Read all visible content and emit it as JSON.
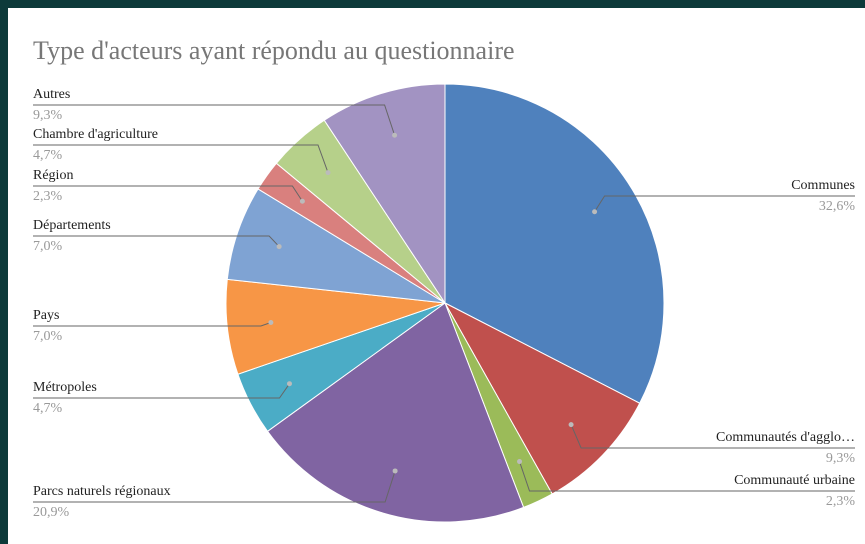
{
  "chart_data": {
    "type": "pie",
    "title": "Type d'acteurs ayant répondu au questionnaire",
    "categories": [
      "Communes",
      "Communautés d'agglo…",
      "Communauté urbaine",
      "Parcs naturels régionaux",
      "Métropoles",
      "Pays",
      "Départements",
      "Région",
      "Chambre d'agriculture",
      "Autres"
    ],
    "values": [
      32.6,
      9.3,
      2.3,
      20.9,
      4.7,
      7.0,
      7.0,
      2.3,
      4.7,
      9.3
    ],
    "value_labels": [
      "32,6%",
      "9,3%",
      "2,3%",
      "20,9%",
      "4,7%",
      "7,0%",
      "7,0%",
      "2,3%",
      "4,7%",
      "9,3%"
    ],
    "colors": [
      "#4f81bd",
      "#c0504d",
      "#9bbb59",
      "#8064a2",
      "#4bacc6",
      "#f79646",
      "#7fa3d3",
      "#d9807e",
      "#b6d08a",
      "#a293c2"
    ]
  }
}
